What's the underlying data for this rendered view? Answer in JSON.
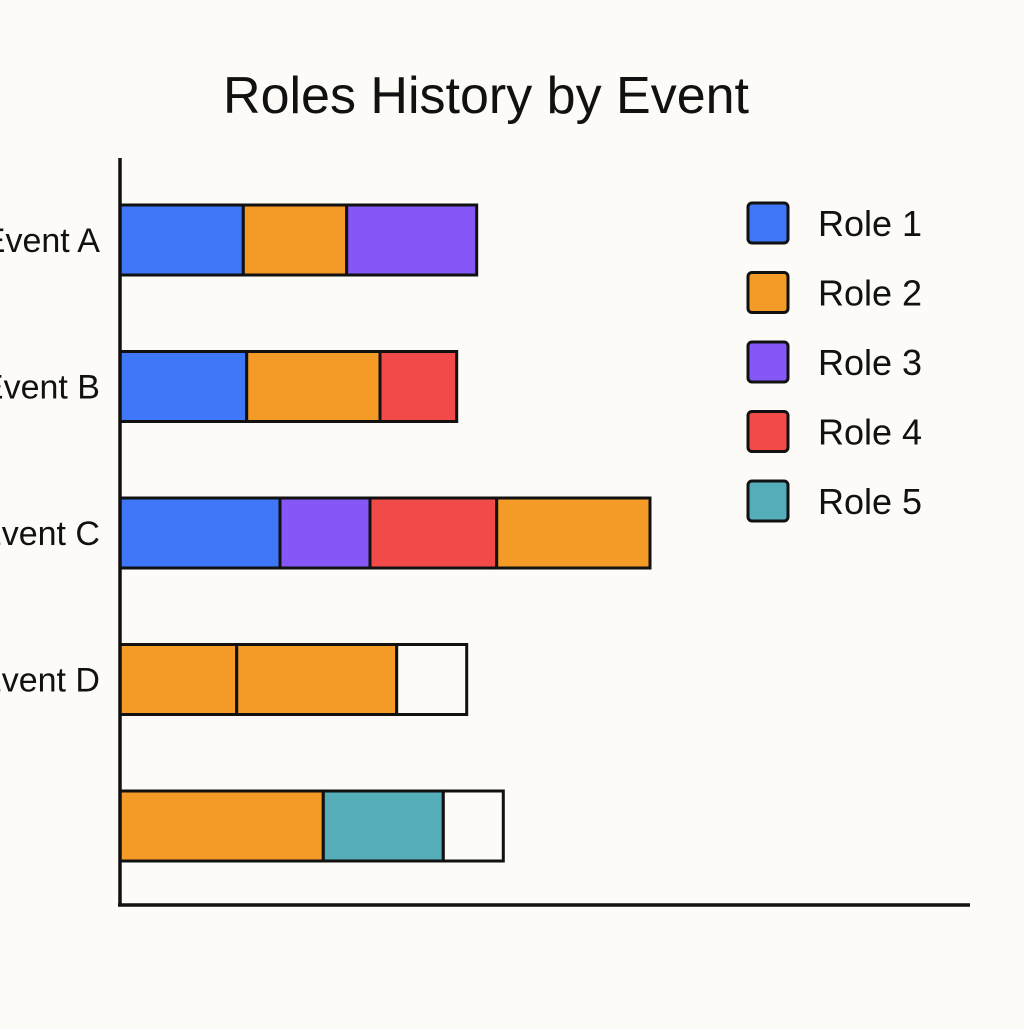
{
  "chart_data": {
    "type": "bar",
    "orientation": "horizontal",
    "stacked": true,
    "title": "Roles History by Event",
    "xlabel": "",
    "ylabel": "",
    "xlim": [
      0,
      25.5
    ],
    "grid": false,
    "legend_position": "top-right",
    "categories": [
      "Event A",
      "Event B",
      "Event C",
      "Event D",
      ""
    ],
    "roles": [
      {
        "name": "Role 1",
        "color": "#3e78f8"
      },
      {
        "name": "Role 2",
        "color": "#f39a27"
      },
      {
        "name": "Role 3",
        "color": "#8756f7"
      },
      {
        "name": "Role 4",
        "color": "#f24a49"
      },
      {
        "name": "Role 5",
        "color": "#54adb9"
      }
    ],
    "unfilled_color": "#fcfbf7",
    "bars": [
      {
        "category": "Event A",
        "segments": [
          {
            "role": "Role 1",
            "value": 3.7
          },
          {
            "role": "Role 2",
            "value": 3.1
          },
          {
            "role": "Role 3",
            "value": 3.9
          }
        ]
      },
      {
        "category": "Event B",
        "segments": [
          {
            "role": "Role 1",
            "value": 3.8
          },
          {
            "role": "Role 2",
            "value": 4.0
          },
          {
            "role": "Role 4",
            "value": 2.3
          }
        ]
      },
      {
        "category": "Event C",
        "segments": [
          {
            "role": "Role 1",
            "value": 4.8
          },
          {
            "role": "Role 3",
            "value": 2.7
          },
          {
            "role": "Role 4",
            "value": 3.8
          },
          {
            "role": "Role 2",
            "value": 4.6
          }
        ]
      },
      {
        "category": "Event D",
        "segments": [
          {
            "role": "Role 2",
            "value": 3.5
          },
          {
            "role": "Role 2",
            "value": 4.8
          },
          {
            "role": null,
            "value": 2.1
          }
        ]
      },
      {
        "category": "",
        "segments": [
          {
            "role": "Role 2",
            "value": 6.1
          },
          {
            "role": "Role 5",
            "value": 3.6
          },
          {
            "role": null,
            "value": 1.8
          }
        ]
      }
    ]
  }
}
